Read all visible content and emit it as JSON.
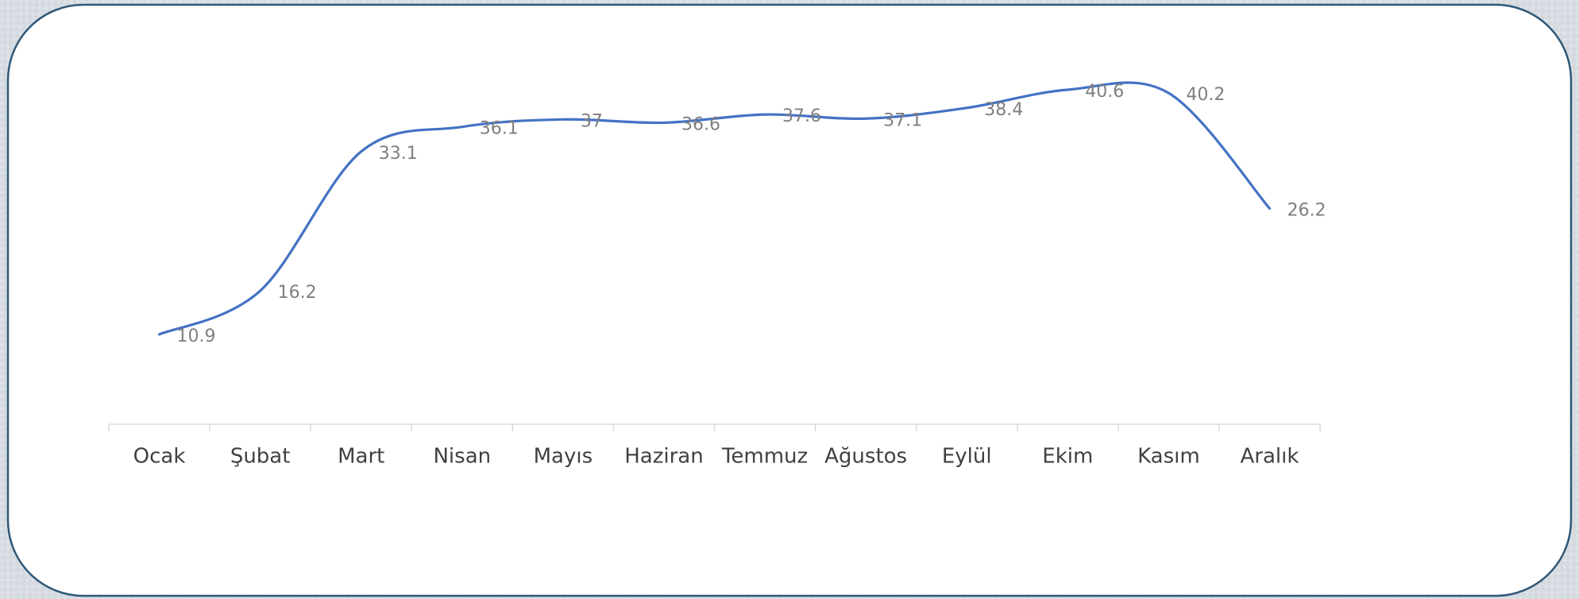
{
  "chart_data": {
    "type": "line",
    "categories": [
      "Ocak",
      "Şubat",
      "Mart",
      "Nisan",
      "Mayıs",
      "Haziran",
      "Temmuz",
      "Ağustos",
      "Eylül",
      "Ekim",
      "Kasım",
      "Aralık"
    ],
    "values": [
      10.9,
      16.2,
      33.1,
      36.1,
      37,
      36.6,
      37.6,
      37.1,
      38.4,
      40.6,
      40.2,
      26.2
    ],
    "color": "#4472c4"
  }
}
